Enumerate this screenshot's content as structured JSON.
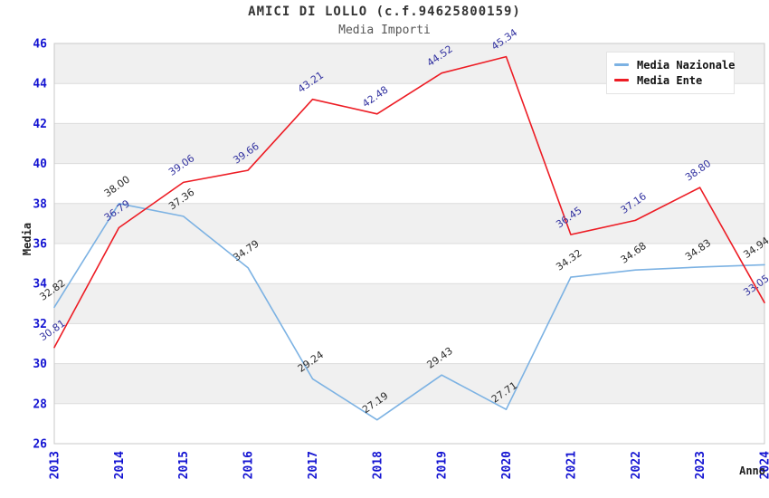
{
  "header": {
    "title": "AMICI DI LOLLO (c.f.94625800159)",
    "subtitle": "Media Importi"
  },
  "chart_data": {
    "type": "line",
    "title": "AMICI DI LOLLO (c.f.94625800159)",
    "subtitle": "Media Importi",
    "xlabel": "Anno",
    "ylabel": "Media",
    "categories": [
      "2013",
      "2014",
      "2015",
      "2016",
      "2017",
      "2018",
      "2019",
      "2020",
      "2021",
      "2022",
      "2023",
      "2024"
    ],
    "series": [
      {
        "name": "Media Nazionale",
        "color": "#7cb2e3",
        "label_color": "#2b2b2b",
        "values": [
          32.82,
          38.0,
          37.36,
          34.79,
          29.24,
          27.19,
          29.43,
          27.71,
          34.32,
          34.68,
          34.83,
          34.94
        ]
      },
      {
        "name": "Media Ente",
        "color": "#ed1c24",
        "label_color": "#3232a0",
        "values": [
          30.81,
          36.79,
          39.06,
          39.66,
          43.21,
          42.48,
          44.52,
          45.34,
          36.45,
          37.16,
          38.8,
          33.05
        ]
      }
    ],
    "ylim": [
      26,
      46
    ],
    "ytick_step": 2,
    "legend_position": "top-right",
    "grid": "horizontal-bands",
    "colors": {
      "band": "#f0f0f0",
      "band_alt": "#ffffff",
      "grid": "#dcdcdc",
      "border": "#c9c9c9",
      "tick_label": "#1414d2"
    }
  }
}
